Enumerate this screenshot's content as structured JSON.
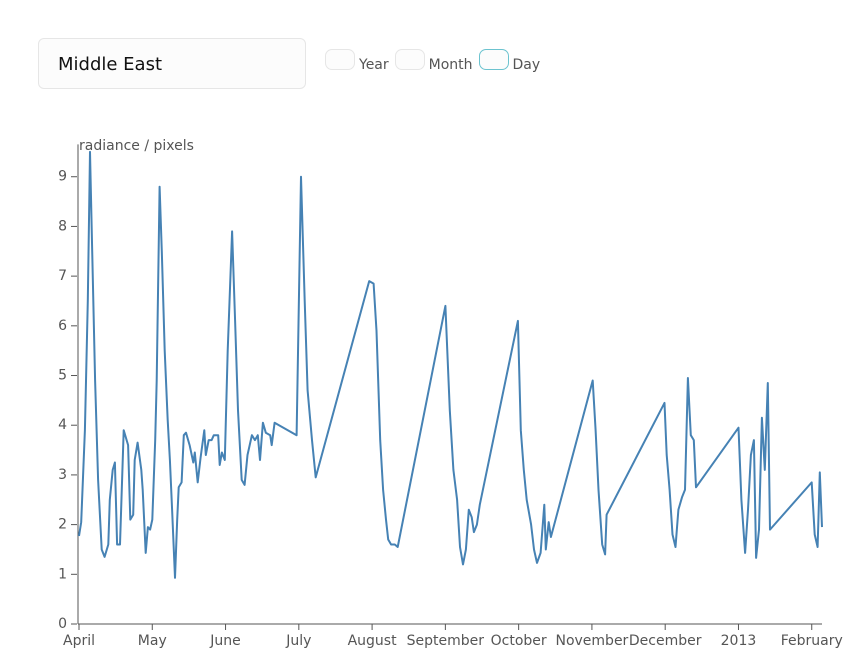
{
  "controls": {
    "region": "Middle East",
    "granularity": [
      "Year",
      "Month",
      "Day"
    ],
    "selected": "Day"
  },
  "chart_data": {
    "type": "line",
    "y_label": "radiance / pixels",
    "xlim": [
      0,
      10.14
    ],
    "ylim": [
      0,
      9.55
    ],
    "xticks": [
      {
        "value": 0,
        "label": "April"
      },
      {
        "value": 1,
        "label": "May"
      },
      {
        "value": 2,
        "label": "June"
      },
      {
        "value": 3,
        "label": "July"
      },
      {
        "value": 4,
        "label": "August"
      },
      {
        "value": 5,
        "label": "September"
      },
      {
        "value": 6,
        "label": "October"
      },
      {
        "value": 7,
        "label": "November"
      },
      {
        "value": 8,
        "label": "December"
      },
      {
        "value": 9,
        "label": "2013"
      },
      {
        "value": 10,
        "label": "February"
      }
    ],
    "yticks": [
      0,
      1,
      2,
      3,
      4,
      5,
      6,
      7,
      8,
      9
    ],
    "x": [
      0,
      0.03,
      0.08,
      0.12,
      0.15,
      0.18,
      0.22,
      0.26,
      0.31,
      0.35,
      0.4,
      0.42,
      0.46,
      0.49,
      0.52,
      0.56,
      0.61,
      0.67,
      0.7,
      0.74,
      0.76,
      0.8,
      0.85,
      0.87,
      0.91,
      0.94,
      0.97,
      1.0,
      1.04,
      1.06,
      1.1,
      1.13,
      1.17,
      1.21,
      1.24,
      1.27,
      1.31,
      1.34,
      1.36,
      1.4,
      1.43,
      1.46,
      1.51,
      1.56,
      1.58,
      1.62,
      1.66,
      1.71,
      1.73,
      1.77,
      1.81,
      1.84,
      1.9,
      1.92,
      1.95,
      1.99,
      2.03,
      2.09,
      2.13,
      2.17,
      2.22,
      2.26,
      2.3,
      2.36,
      2.4,
      2.44,
      2.47,
      2.51,
      2.55,
      2.61,
      2.63,
      2.67,
      2.97,
      3.03,
      3.08,
      3.12,
      3.18,
      3.23,
      3.96,
      4.02,
      4.06,
      4.11,
      4.15,
      4.19,
      4.22,
      4.26,
      4.31,
      4.35,
      5.0,
      5.06,
      5.11,
      5.16,
      5.2,
      5.24,
      5.28,
      5.32,
      5.36,
      5.39,
      5.43,
      5.47,
      5.99,
      6.03,
      6.07,
      6.11,
      6.17,
      6.21,
      6.25,
      6.3,
      6.35,
      6.37,
      6.41,
      6.44,
      7.01,
      7.05,
      7.09,
      7.14,
      7.18,
      7.2,
      7.99,
      8.02,
      8.06,
      8.1,
      8.14,
      8.18,
      8.23,
      8.27,
      8.31,
      8.35,
      8.39,
      8.42,
      9.0,
      9.04,
      9.09,
      9.13,
      9.17,
      9.21,
      9.24,
      9.28,
      9.32,
      9.36,
      9.4,
      9.43,
      10.0,
      10.04,
      10.08,
      10.11,
      10.14
    ],
    "series": [
      {
        "color": "#4682b4",
        "values": [
          1.77,
          2.05,
          3.9,
          6.5,
          9.5,
          7.5,
          4.9,
          2.9,
          1.5,
          1.35,
          1.6,
          2.5,
          3.1,
          3.25,
          1.6,
          1.6,
          3.9,
          3.6,
          2.1,
          2.2,
          3.3,
          3.65,
          3.1,
          2.7,
          1.43,
          1.95,
          1.9,
          2.1,
          3.7,
          4.9,
          8.8,
          7.5,
          5.5,
          4.1,
          3.3,
          2.3,
          0.93,
          2.1,
          2.75,
          2.85,
          3.8,
          3.85,
          3.6,
          3.25,
          3.45,
          2.85,
          3.35,
          3.9,
          3.4,
          3.7,
          3.7,
          3.8,
          3.8,
          3.2,
          3.45,
          3.3,
          5.5,
          7.9,
          6.1,
          4.3,
          2.9,
          2.8,
          3.4,
          3.8,
          3.7,
          3.8,
          3.3,
          4.05,
          3.85,
          3.8,
          3.6,
          4.05,
          3.8,
          9.0,
          6.5,
          4.7,
          3.7,
          2.95,
          6.9,
          6.85,
          5.9,
          3.7,
          2.7,
          2.1,
          1.7,
          1.6,
          1.6,
          1.55,
          6.4,
          4.3,
          3.1,
          2.5,
          1.55,
          1.2,
          1.5,
          2.3,
          2.15,
          1.85,
          2.0,
          2.4,
          6.1,
          3.9,
          3.1,
          2.5,
          2.0,
          1.5,
          1.23,
          1.43,
          2.4,
          1.5,
          2.05,
          1.75,
          4.9,
          3.9,
          2.7,
          1.6,
          1.4,
          2.2,
          4.45,
          3.4,
          2.7,
          1.8,
          1.55,
          2.3,
          2.55,
          2.7,
          4.95,
          3.8,
          3.7,
          2.75,
          3.95,
          2.5,
          1.43,
          2.3,
          3.4,
          3.7,
          1.33,
          1.9,
          4.15,
          3.1,
          4.85,
          1.9,
          2.85,
          1.8,
          1.55,
          3.05,
          1.95
        ]
      }
    ]
  }
}
